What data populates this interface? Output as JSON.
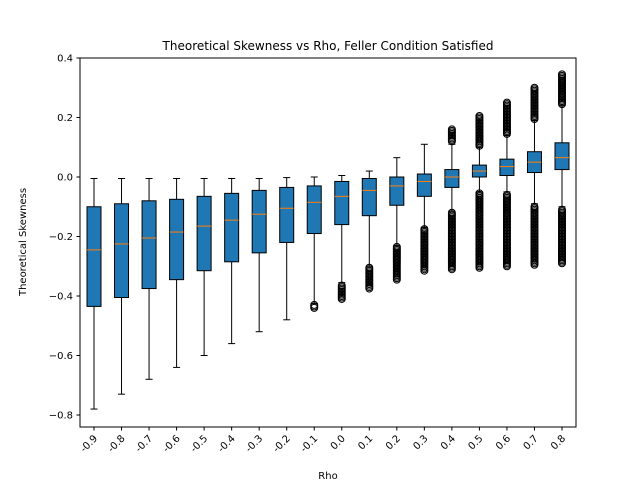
{
  "chart_data": {
    "type": "box",
    "title": "Theoretical Skewness vs Rho, Feller Condition Satisfied",
    "xlabel": "Rho",
    "ylabel": "Theoretical Skewness",
    "ylim": [
      -0.84,
      0.4
    ],
    "yticks": [
      0.4,
      0.2,
      0.0,
      -0.2,
      -0.4,
      -0.6,
      -0.8
    ],
    "ytick_labels": [
      "0.4",
      "0.2",
      "0.0",
      "−0.2",
      "−0.4",
      "−0.6",
      "−0.8"
    ],
    "categories": [
      "-0.9",
      "-0.8",
      "-0.7",
      "-0.6",
      "-0.5",
      "-0.4",
      "-0.3",
      "-0.2",
      "-0.1",
      "0.0",
      "0.1",
      "0.2",
      "0.3",
      "0.4",
      "0.5",
      "0.6",
      "0.7",
      "0.8"
    ],
    "grid": false,
    "colors": {
      "box_fill": "#1f77b4",
      "median": "#ff7f0e",
      "edge": "#000000"
    },
    "boxes": [
      {
        "whisker_low": -0.78,
        "q1": -0.435,
        "median": -0.245,
        "q3": -0.1,
        "whisker_high": -0.005
      },
      {
        "whisker_low": -0.73,
        "q1": -0.405,
        "median": -0.225,
        "q3": -0.09,
        "whisker_high": -0.005
      },
      {
        "whisker_low": -0.68,
        "q1": -0.375,
        "median": -0.205,
        "q3": -0.08,
        "whisker_high": -0.005
      },
      {
        "whisker_low": -0.64,
        "q1": -0.345,
        "median": -0.185,
        "q3": -0.075,
        "whisker_high": -0.005
      },
      {
        "whisker_low": -0.6,
        "q1": -0.315,
        "median": -0.165,
        "q3": -0.065,
        "whisker_high": -0.005
      },
      {
        "whisker_low": -0.56,
        "q1": -0.285,
        "median": -0.145,
        "q3": -0.055,
        "whisker_high": -0.005
      },
      {
        "whisker_low": -0.52,
        "q1": -0.255,
        "median": -0.125,
        "q3": -0.045,
        "whisker_high": -0.005
      },
      {
        "whisker_low": -0.48,
        "q1": -0.22,
        "median": -0.105,
        "q3": -0.035,
        "whisker_high": -0.002
      },
      {
        "whisker_low": -0.425,
        "q1": -0.19,
        "median": -0.085,
        "q3": -0.03,
        "whisker_high": 0.0,
        "outliers": [
          [
            -0.44,
            -0.43
          ]
        ]
      },
      {
        "whisker_low": -0.355,
        "q1": -0.16,
        "median": -0.065,
        "q3": -0.015,
        "whisker_high": 0.005,
        "outliers": [
          [
            -0.41,
            -0.365
          ]
        ]
      },
      {
        "whisker_low": -0.3,
        "q1": -0.13,
        "median": -0.045,
        "q3": -0.005,
        "whisker_high": 0.02,
        "outliers": [
          [
            -0.375,
            -0.305
          ]
        ]
      },
      {
        "whisker_low": -0.23,
        "q1": -0.095,
        "median": -0.03,
        "q3": 0.0,
        "whisker_high": 0.065,
        "outliers": [
          [
            -0.345,
            -0.235
          ]
        ]
      },
      {
        "whisker_low": -0.17,
        "q1": -0.065,
        "median": -0.015,
        "q3": 0.01,
        "whisker_high": 0.11,
        "outliers": [
          [
            -0.315,
            -0.175
          ]
        ]
      },
      {
        "whisker_low": -0.115,
        "q1": -0.035,
        "median": 0.0,
        "q3": 0.025,
        "whisker_high": 0.11,
        "outliers": [
          [
            -0.31,
            -0.12
          ],
          [
            0.12,
            0.16
          ]
        ]
      },
      {
        "whisker_low": -0.05,
        "q1": 0.0,
        "median": 0.02,
        "q3": 0.04,
        "whisker_high": 0.1,
        "outliers": [
          [
            -0.305,
            -0.055
          ],
          [
            0.105,
            0.205
          ]
        ]
      },
      {
        "whisker_low": -0.05,
        "q1": 0.005,
        "median": 0.035,
        "q3": 0.06,
        "whisker_high": 0.14,
        "outliers": [
          [
            -0.3,
            -0.06
          ],
          [
            0.145,
            0.25
          ]
        ]
      },
      {
        "whisker_low": -0.09,
        "q1": 0.015,
        "median": 0.05,
        "q3": 0.085,
        "whisker_high": 0.19,
        "outliers": [
          [
            -0.295,
            -0.1
          ],
          [
            0.195,
            0.3
          ]
        ]
      },
      {
        "whisker_low": -0.1,
        "q1": 0.025,
        "median": 0.065,
        "q3": 0.115,
        "whisker_high": 0.24,
        "outliers": [
          [
            -0.29,
            -0.11
          ],
          [
            0.245,
            0.345
          ]
        ]
      }
    ]
  }
}
